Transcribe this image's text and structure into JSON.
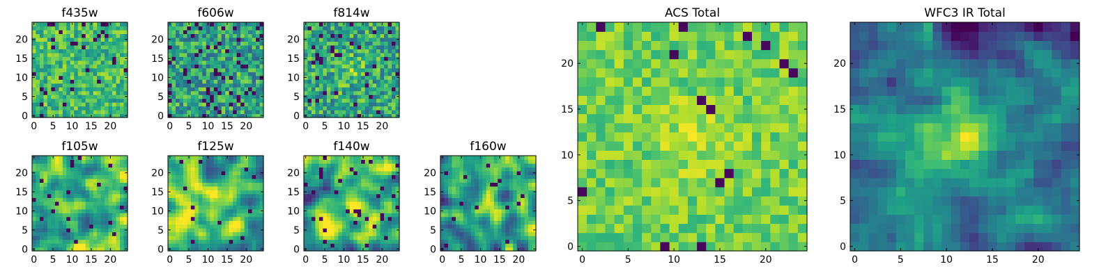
{
  "chart_data": {
    "type": "heatmap",
    "colormap": "viridis",
    "grid": false,
    "panels": [
      {
        "title": "f435w",
        "kind": "noise",
        "seed": 11,
        "smooth": 0,
        "bias": 0.68,
        "spread": 0.2,
        "dark_frac": 0.05,
        "peak": 0.0,
        "xticks": [
          "0",
          "5",
          "10",
          "15",
          "20"
        ],
        "yticks": [
          "0",
          "5",
          "10",
          "15",
          "20"
        ],
        "xlim": [
          -0.5,
          24.5
        ],
        "ylim": [
          -0.5,
          24.5
        ]
      },
      {
        "title": "f606w",
        "kind": "noise",
        "seed": 23,
        "smooth": 0,
        "bias": 0.58,
        "spread": 0.26,
        "dark_frac": 0.09,
        "peak": 0.0,
        "xticks": [
          "0",
          "5",
          "10",
          "15",
          "20"
        ],
        "yticks": [
          "0",
          "5",
          "10",
          "15",
          "20"
        ],
        "xlim": [
          -0.5,
          24.5
        ],
        "ylim": [
          -0.5,
          24.5
        ]
      },
      {
        "title": "f814w",
        "kind": "noise",
        "seed": 37,
        "smooth": 0,
        "bias": 0.6,
        "spread": 0.25,
        "dark_frac": 0.07,
        "peak": 0.15,
        "xticks": [
          "0",
          "5",
          "10",
          "15",
          "20"
        ],
        "yticks": [
          "0",
          "5",
          "10",
          "15",
          "20"
        ],
        "xlim": [
          -0.5,
          24.5
        ],
        "ylim": [
          -0.5,
          24.5
        ]
      },
      {
        "title": "f105w",
        "kind": "smooth",
        "seed": 41,
        "smooth": 2,
        "bias": 0.7,
        "spread": 0.45,
        "dark_frac": 0.03,
        "peak": 0.1,
        "xticks": [
          "0",
          "5",
          "10",
          "15",
          "20"
        ],
        "yticks": [
          "0",
          "5",
          "10",
          "15",
          "20"
        ],
        "xlim": [
          -0.5,
          24.5
        ],
        "ylim": [
          -0.5,
          24.5
        ]
      },
      {
        "title": "f125w",
        "kind": "smooth",
        "seed": 53,
        "smooth": 2,
        "bias": 0.68,
        "spread": 0.45,
        "dark_frac": 0.03,
        "peak": 0.1,
        "xticks": [
          "0",
          "5",
          "10",
          "15",
          "20"
        ],
        "yticks": [
          "0",
          "5",
          "10",
          "15",
          "20"
        ],
        "xlim": [
          -0.5,
          24.5
        ],
        "ylim": [
          -0.5,
          24.5
        ]
      },
      {
        "title": "f140w",
        "kind": "smooth",
        "seed": 67,
        "smooth": 2,
        "bias": 0.62,
        "spread": 0.5,
        "dark_frac": 0.04,
        "peak": 0.15,
        "xticks": [
          "0",
          "5",
          "10",
          "15",
          "20"
        ],
        "yticks": [
          "0",
          "5",
          "10",
          "15",
          "20"
        ],
        "xlim": [
          -0.5,
          24.5
        ],
        "ylim": [
          -0.5,
          24.5
        ]
      },
      {
        "title": "f160w",
        "kind": "smooth",
        "seed": 79,
        "smooth": 2,
        "bias": 0.55,
        "spread": 0.45,
        "dark_frac": 0.03,
        "peak": 0.35,
        "xticks": [
          "0",
          "5",
          "10",
          "15",
          "20"
        ],
        "yticks": [
          "0",
          "5",
          "10",
          "15",
          "20"
        ],
        "xlim": [
          -0.5,
          24.5
        ],
        "ylim": [
          -0.5,
          24.5
        ]
      },
      {
        "title": "ACS Total",
        "kind": "noise",
        "seed": 97,
        "smooth": 0,
        "bias": 0.78,
        "spread": 0.14,
        "dark_frac": 0.03,
        "peak": 0.12,
        "xticks": [
          "0",
          "5",
          "10",
          "15",
          "20"
        ],
        "yticks": [
          "0",
          "5",
          "10",
          "15",
          "20"
        ],
        "xlim": [
          -0.5,
          24.5
        ],
        "ylim": [
          -0.5,
          24.5
        ]
      },
      {
        "title": "WFC3 IR Total",
        "kind": "smooth",
        "seed": 101,
        "smooth": 1,
        "bias": 0.45,
        "spread": 0.3,
        "dark_frac": 0.0,
        "peak": 0.55,
        "xticks": [
          "0",
          "5",
          "10",
          "15",
          "20"
        ],
        "yticks": [
          "0",
          "5",
          "10",
          "15",
          "20"
        ],
        "xlim": [
          -0.5,
          24.5
        ],
        "ylim": [
          -0.5,
          24.5
        ]
      }
    ]
  }
}
